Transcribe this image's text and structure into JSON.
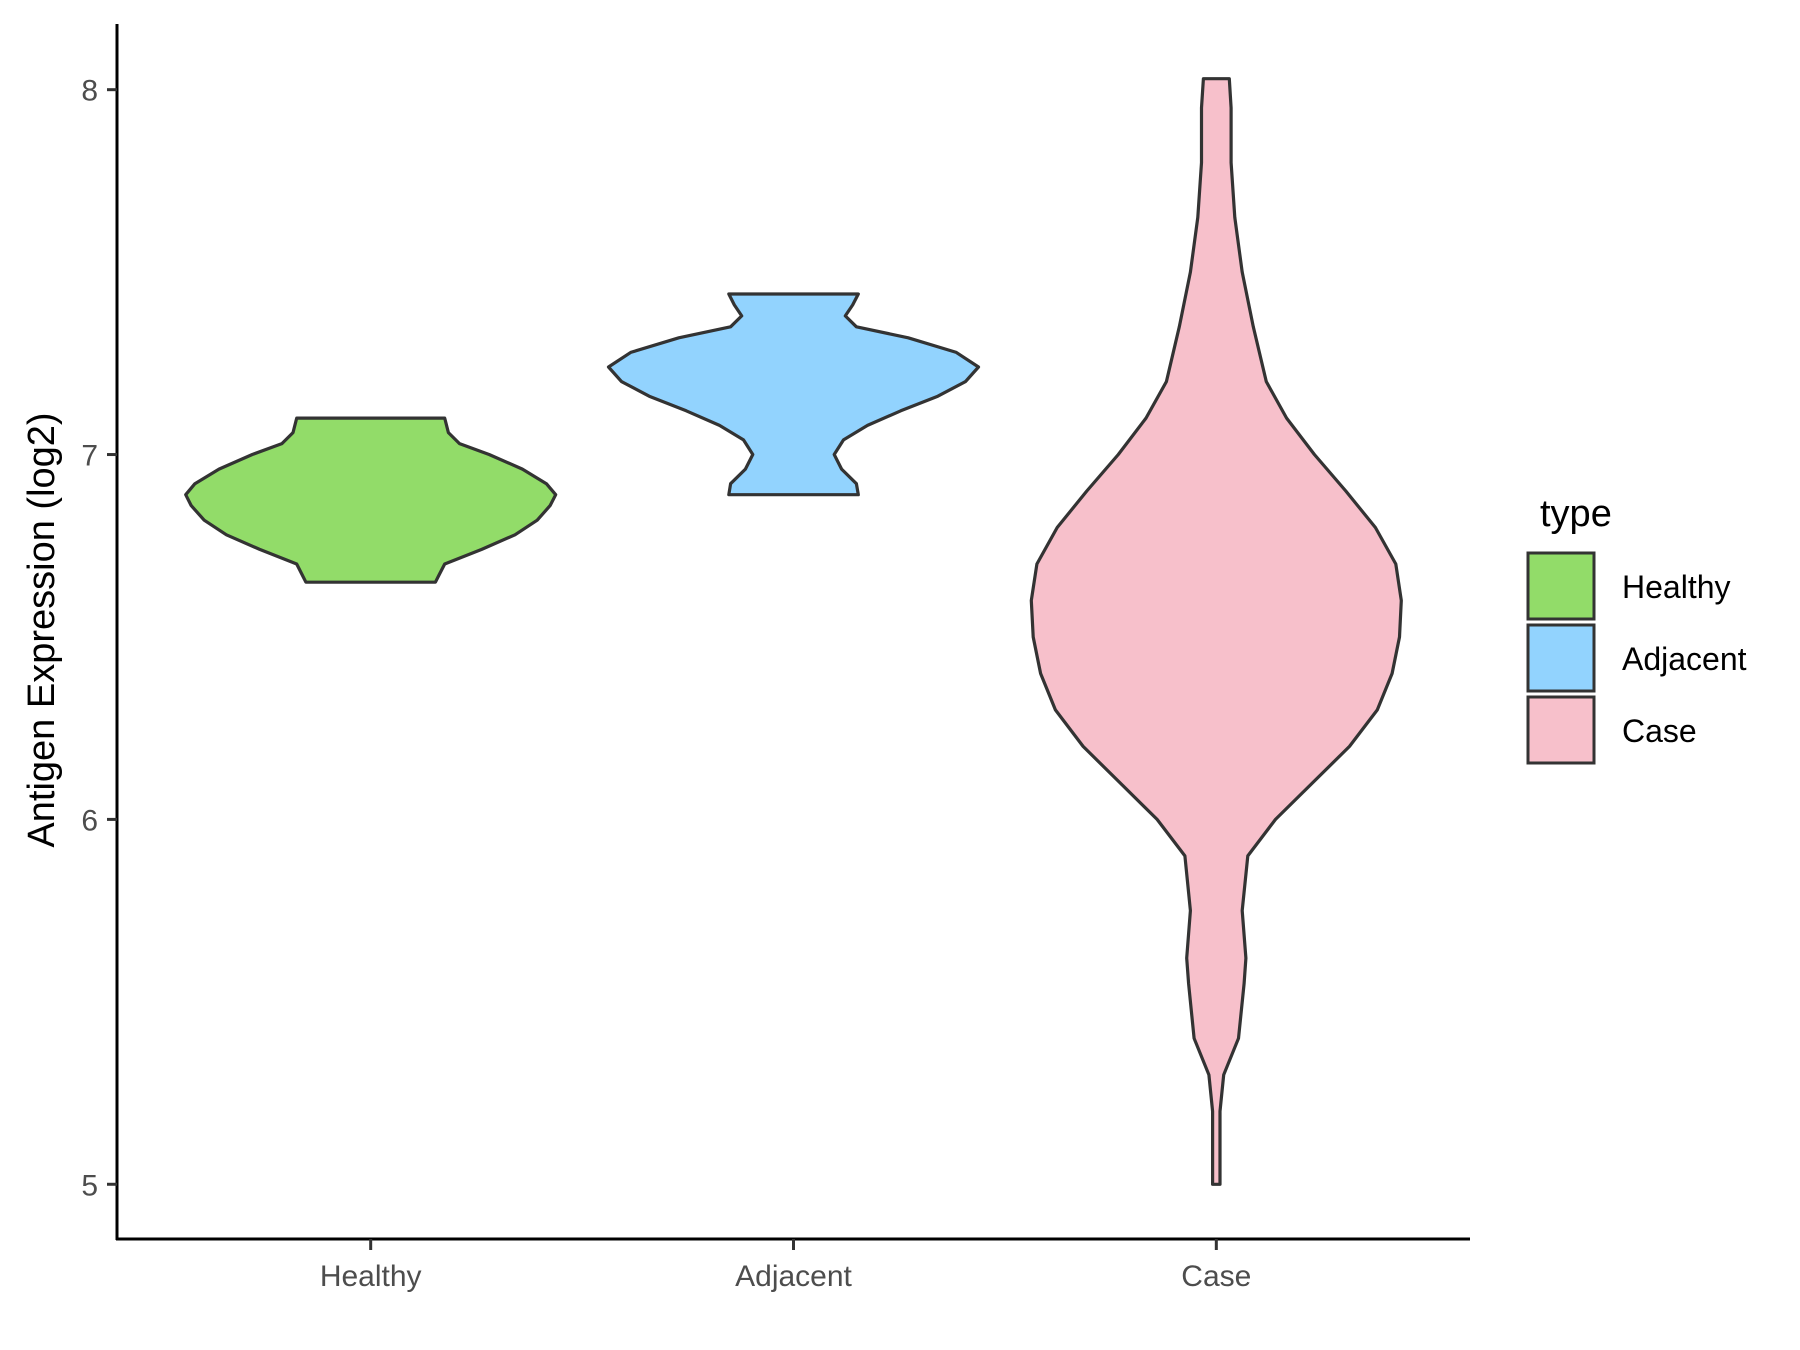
{
  "chart_data": {
    "type": "violin",
    "ylabel": "Antigen Expression (log2)",
    "xlabel": "",
    "ylim": [
      4.85,
      8.18
    ],
    "yticks": [
      5,
      6,
      7,
      8
    ],
    "categories": [
      "Healthy",
      "Adjacent",
      "Case"
    ],
    "legend": {
      "title": "type",
      "position": "right",
      "entries": [
        "Healthy",
        "Adjacent",
        "Case"
      ]
    },
    "grid": false,
    "series": [
      {
        "category": "Healthy",
        "color": "#92dc69",
        "min": 6.65,
        "max": 7.1,
        "density": [
          [
            6.65,
            0.35
          ],
          [
            6.67,
            0.37
          ],
          [
            6.7,
            0.4
          ],
          [
            6.74,
            0.6
          ],
          [
            6.78,
            0.78
          ],
          [
            6.82,
            0.9
          ],
          [
            6.86,
            0.97
          ],
          [
            6.89,
            1.0
          ],
          [
            6.92,
            0.95
          ],
          [
            6.96,
            0.82
          ],
          [
            7.0,
            0.64
          ],
          [
            7.03,
            0.48
          ],
          [
            7.06,
            0.42
          ],
          [
            7.1,
            0.4
          ]
        ]
      },
      {
        "category": "Adjacent",
        "color": "#92d3fe",
        "min": 6.89,
        "max": 7.44,
        "density": [
          [
            6.89,
            0.35
          ],
          [
            6.92,
            0.34
          ],
          [
            6.96,
            0.26
          ],
          [
            7.0,
            0.22
          ],
          [
            7.04,
            0.27
          ],
          [
            7.08,
            0.4
          ],
          [
            7.12,
            0.58
          ],
          [
            7.16,
            0.78
          ],
          [
            7.2,
            0.93
          ],
          [
            7.24,
            1.0
          ],
          [
            7.28,
            0.88
          ],
          [
            7.32,
            0.62
          ],
          [
            7.35,
            0.34
          ],
          [
            7.38,
            0.28
          ],
          [
            7.41,
            0.32
          ],
          [
            7.44,
            0.35
          ]
        ]
      },
      {
        "category": "Case",
        "color": "#f7c0cb",
        "min": 5.0,
        "max": 8.03,
        "density": [
          [
            5.0,
            0.02
          ],
          [
            5.2,
            0.02
          ],
          [
            5.3,
            0.04
          ],
          [
            5.4,
            0.12
          ],
          [
            5.55,
            0.15
          ],
          [
            5.62,
            0.16
          ],
          [
            5.75,
            0.14
          ],
          [
            5.9,
            0.17
          ],
          [
            6.0,
            0.32
          ],
          [
            6.1,
            0.52
          ],
          [
            6.2,
            0.72
          ],
          [
            6.3,
            0.87
          ],
          [
            6.4,
            0.95
          ],
          [
            6.5,
            0.99
          ],
          [
            6.6,
            1.0
          ],
          [
            6.7,
            0.97
          ],
          [
            6.8,
            0.86
          ],
          [
            6.9,
            0.7
          ],
          [
            7.0,
            0.53
          ],
          [
            7.1,
            0.38
          ],
          [
            7.2,
            0.27
          ],
          [
            7.35,
            0.2
          ],
          [
            7.5,
            0.14
          ],
          [
            7.65,
            0.1
          ],
          [
            7.8,
            0.08
          ],
          [
            7.95,
            0.08
          ],
          [
            8.03,
            0.07
          ]
        ]
      }
    ]
  }
}
